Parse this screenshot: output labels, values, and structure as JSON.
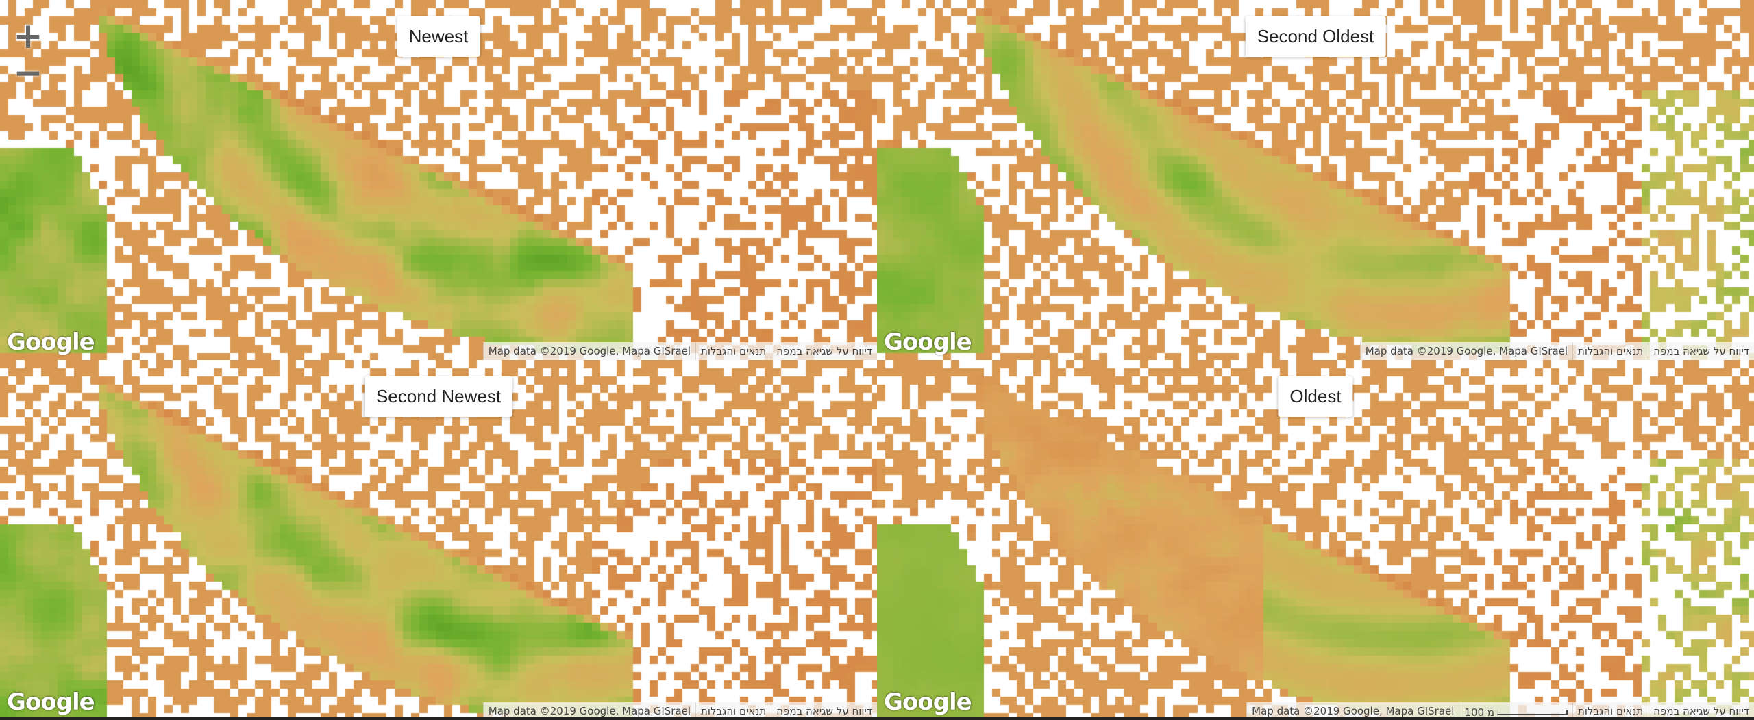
{
  "panels": [
    {
      "id": "newest",
      "title": "Newest",
      "variant": "dark"
    },
    {
      "id": "second-oldest",
      "title": "Second Oldest",
      "variant": "mid"
    },
    {
      "id": "second-newest",
      "title": "Second Newest",
      "variant": "dark2"
    },
    {
      "id": "oldest",
      "title": "Oldest",
      "variant": "light"
    }
  ],
  "map_brand": "Google",
  "attribution": {
    "map_data": "Map data ©2019 Google, Mapa GISrael",
    "terms": "תנאים והגבלות",
    "report": "דיווח על שגיאה במפה",
    "scale_label": "100 מ"
  },
  "zoom": {
    "in": "+",
    "out": "−"
  },
  "colors": {
    "dense_vegetation": "#1f6e0d",
    "vegetation": "#5aa625",
    "sparse": "#c9a24a",
    "bare_soil": "#d9924a",
    "no_data": "#ffffff"
  },
  "icons": {
    "zoom_in": "plus-icon",
    "zoom_out": "minus-icon"
  }
}
